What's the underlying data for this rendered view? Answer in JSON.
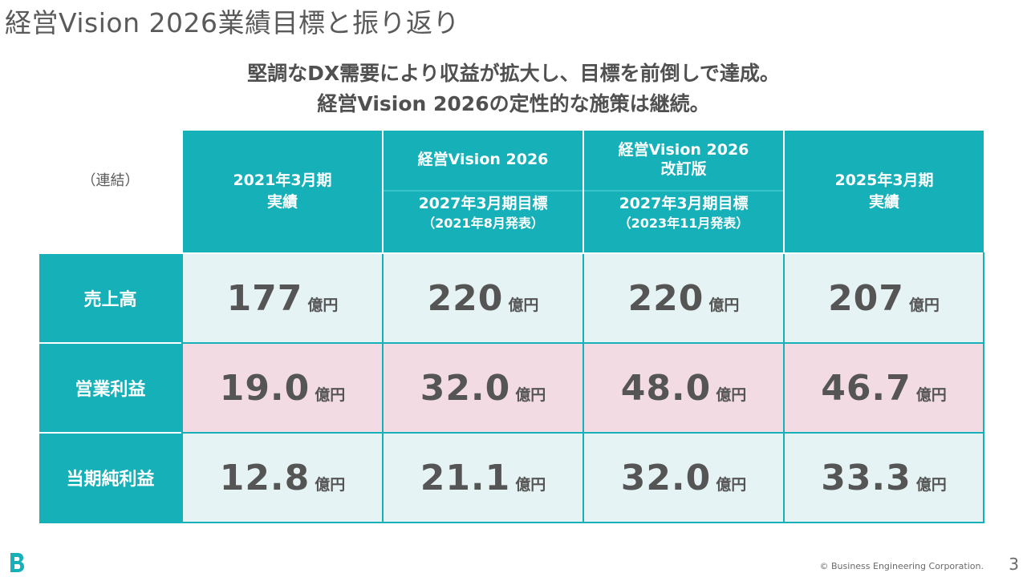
{
  "page": {
    "title": "経営Vision 2026業績目標と振り返り",
    "subtitle_line1": "堅調なDX需要により収益が拡大し、目標を前倒しで達成。",
    "subtitle_line2": "経営Vision 2026の定性的な施策は継続。"
  },
  "table": {
    "corner_label": "（連結）",
    "columns": [
      {
        "line1": "2021年3月期",
        "line2": "実績"
      },
      {
        "top": "経営Vision 2026",
        "bottom": "2027年3月期目標",
        "note": "（2021年8月発表）"
      },
      {
        "top1": "経営Vision 2026",
        "top2": "改訂版",
        "bottom": "2027年3月期目標",
        "note": "（2023年11月発表）"
      },
      {
        "line1": "2025年3月期",
        "line2": "実績"
      }
    ],
    "unit": "億円",
    "rows": [
      {
        "label": "売上高",
        "values": [
          "177",
          "220",
          "220",
          "207"
        ]
      },
      {
        "label": "営業利益",
        "values": [
          "19.0",
          "32.0",
          "48.0",
          "46.7"
        ]
      },
      {
        "label": "当期純利益",
        "values": [
          "12.8",
          "21.1",
          "32.0",
          "33.3"
        ]
      }
    ]
  },
  "footer": {
    "copyright": "© Business Engineering Corporation.",
    "page_number": "3"
  },
  "colors": {
    "accent": "#16b0b9",
    "row_light": "#e6f3f4",
    "row_pink": "#f3dbe3"
  }
}
